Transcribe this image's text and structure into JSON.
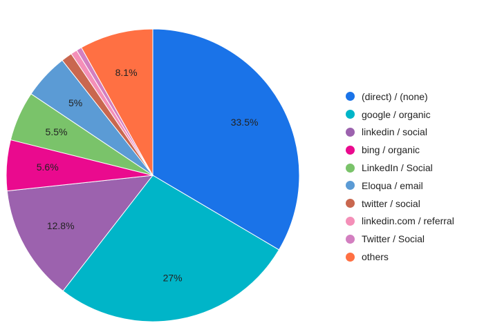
{
  "chart_data": {
    "type": "pie",
    "title": "",
    "slices": [
      {
        "label": "(direct) / (none)",
        "value": 33.5,
        "display": "33.5%",
        "color": "#1a73e8"
      },
      {
        "label": "google / organic",
        "value": 27.0,
        "display": "27%",
        "color": "#00b5c8"
      },
      {
        "label": "linkedin / social",
        "value": 12.8,
        "display": "12.8%",
        "color": "#9c62ae"
      },
      {
        "label": "bing / organic",
        "value": 5.6,
        "display": "5.6%",
        "color": "#ea0a8e"
      },
      {
        "label": "LinkedIn / Social",
        "value": 5.5,
        "display": "5.5%",
        "color": "#7ac36a"
      },
      {
        "label": "Eloqua / email",
        "value": 5.0,
        "display": "5%",
        "color": "#5b9bd5"
      },
      {
        "label": "twitter / social",
        "value": 1.2,
        "display": "",
        "color": "#c9674f"
      },
      {
        "label": "linkedin.com / referral",
        "value": 0.7,
        "display": "",
        "color": "#f48fb8"
      },
      {
        "label": "Twitter / Social",
        "value": 0.6,
        "display": "",
        "color": "#d37fc0"
      },
      {
        "label": "others",
        "value": 8.1,
        "display": "8.1%",
        "color": "#ff7043"
      }
    ],
    "legend_position": "right"
  }
}
